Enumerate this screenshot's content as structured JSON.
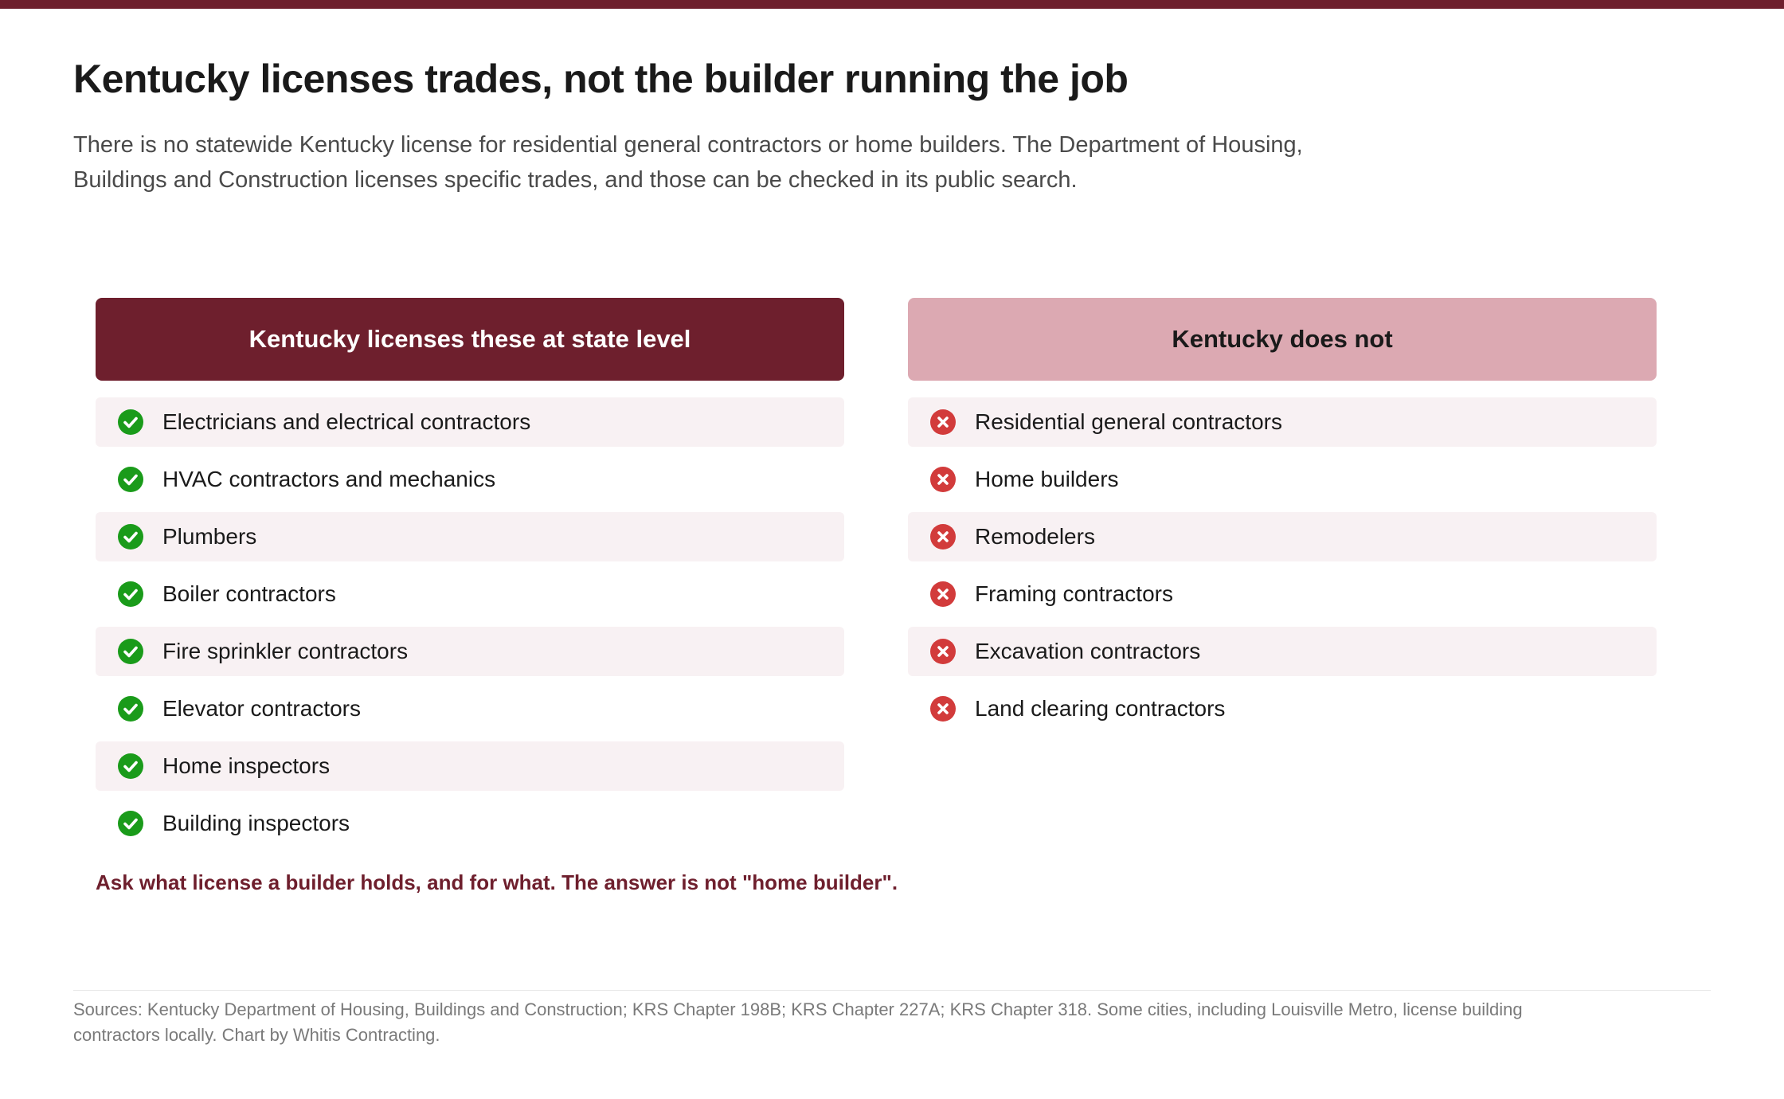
{
  "title": "Kentucky licenses trades, not the builder running the job",
  "subtitle": "There is no statewide Kentucky license for residential general contractors or home builders. The Department of Housing, Buildings and Construction licenses specific trades, and those can be checked in its public search.",
  "colors": {
    "accent": "#6e1f2d",
    "accent_light": "#dca9b2",
    "row_shade": "#f8f1f3",
    "check_green": "#1a9b1a",
    "cross_red": "#d23b3b"
  },
  "licensed": {
    "header": "Kentucky licenses these at state level",
    "icon": "check-circle-icon",
    "items": [
      "Electricians and electrical contractors",
      "HVAC contractors and mechanics",
      "Plumbers",
      "Boiler contractors",
      "Fire sprinkler contractors",
      "Elevator contractors",
      "Home inspectors",
      "Building inspectors"
    ]
  },
  "not_licensed": {
    "header": "Kentucky does not",
    "icon": "x-circle-icon",
    "items": [
      "Residential general contractors",
      "Home builders",
      "Remodelers",
      "Framing contractors",
      "Excavation contractors",
      "Land clearing contractors"
    ]
  },
  "callout": "Ask what license a builder holds, and for what. The answer is not \"home builder\".",
  "sources": "Sources: Kentucky Department of Housing, Buildings and Construction; KRS Chapter 198B; KRS Chapter 227A; KRS Chapter 318. Some cities, including Louisville Metro, license building contractors locally. Chart by Whitis Contracting."
}
